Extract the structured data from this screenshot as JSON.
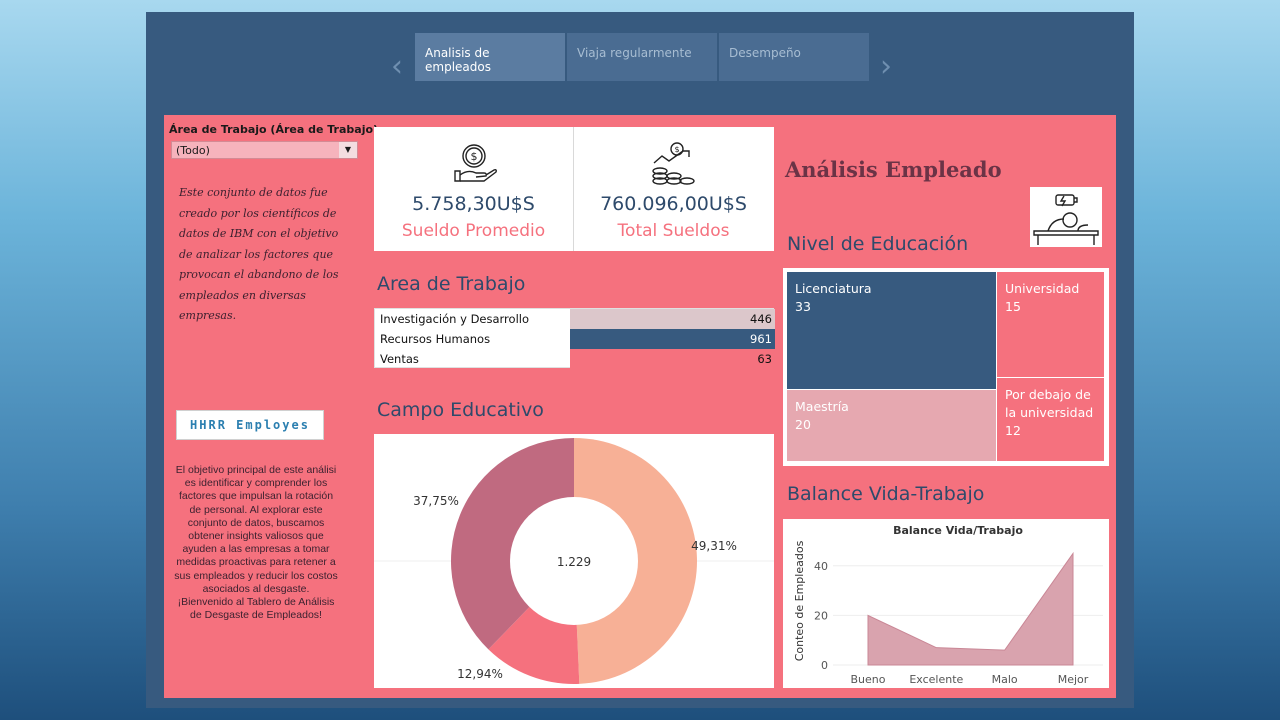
{
  "nav": {
    "prev_icon": "chevron-left-icon",
    "next_icon": "chevron-right-icon",
    "prev_glyph": "‹",
    "next_glyph": "›",
    "tabs": [
      {
        "label": "Analisis de empleados",
        "active": true
      },
      {
        "label": "Viaja regularmente",
        "active": false
      },
      {
        "label": "Desempeño",
        "active": false
      }
    ]
  },
  "sidebar": {
    "filter_label": "Área de Trabajo (Área de Trabajo)",
    "filter_value": "(Todo)",
    "filter_arrow": "▼",
    "description": "Este conjunto de datos fue creado por los científicos de datos de IBM con el objetivo de analizar los factores que provocan el abandono de los empleados en diversas empresas.",
    "logo_text": "HHRR Employes",
    "objective": "El objetivo principal de este análisi es identificar y comprender los factores que impulsan la rotación de personal. Al explorar este conjunto de datos, buscamos obtener insights valiosos que ayuden a las empresas a tomar medidas proactivas para retener a sus empleados y reducir los costos asociados al desgaste.",
    "welcome": "¡Bienvenido al Tablero de Análisis de Desgaste de Empleados!"
  },
  "kpis": [
    {
      "value": "5.758,30U$S",
      "label": "Sueldo Promedio",
      "icon": "money-hand-icon"
    },
    {
      "value": "760.096,00U$S",
      "label": "Total Sueldos",
      "icon": "coins-growth-icon"
    }
  ],
  "area": {
    "title": "Area de Trabajo",
    "rows": [
      {
        "name": "Investigación y Desarrollo",
        "value": 446,
        "color": "#dcc7cb"
      },
      {
        "name": "Recursos Humanos",
        "value": 961,
        "color": "#375a7f"
      },
      {
        "name": "Ventas",
        "value": 63,
        "color": "#f5717e"
      }
    ]
  },
  "campo": {
    "title": "Campo Educativo",
    "center_label": "1.229",
    "slices": [
      {
        "pct": 49.31,
        "label": "49,31%",
        "color": "#f7b096"
      },
      {
        "pct": 12.94,
        "label": "12,94%",
        "color": "#f5717e"
      },
      {
        "pct": 37.75,
        "label": "37,75%",
        "color": "#c06a80"
      }
    ]
  },
  "header": {
    "title": "Análisis Empleado",
    "icon": "tired-worker-icon"
  },
  "educacion": {
    "title": "Nivel de Educación",
    "cells": [
      {
        "name": "Licenciatura",
        "value": "33",
        "color": "#375a7f"
      },
      {
        "name": "Universidad",
        "value": "15",
        "color": "#f5717e"
      },
      {
        "name": "Maestría",
        "value": "20",
        "color": "#e6a8b0"
      },
      {
        "name": "Por debajo de la universidad",
        "value": "12",
        "color": "#f5717e"
      }
    ]
  },
  "balance": {
    "section_title": "Balance Vida-Trabajo",
    "chart_title": "Balance Vida/Trabajo",
    "ylabel": "Conteo de Empleados",
    "categories": [
      "Bueno",
      "Excelente",
      "Malo",
      "Mejor"
    ],
    "values": [
      20,
      7,
      6,
      45
    ],
    "ylim": [
      0,
      50
    ],
    "yticks": [
      "0",
      "20",
      "40"
    ],
    "fill": "#d9a3ae"
  },
  "chart_data": [
    {
      "type": "bar",
      "title": "Area de Trabajo",
      "categories": [
        "Investigación y Desarrollo",
        "Recursos Humanos",
        "Ventas"
      ],
      "values": [
        446,
        961,
        63
      ]
    },
    {
      "type": "pie",
      "title": "Campo Educativo",
      "values": [
        49.31,
        12.94,
        37.75
      ],
      "labels": [
        "49,31%",
        "12,94%",
        "37,75%"
      ],
      "total": "1.229"
    },
    {
      "type": "area",
      "title": "Balance Vida/Trabajo",
      "categories": [
        "Bueno",
        "Excelente",
        "Malo",
        "Mejor"
      ],
      "values": [
        20,
        7,
        6,
        45
      ],
      "ylabel": "Conteo de Empleados",
      "ylim": [
        0,
        50
      ]
    }
  ]
}
